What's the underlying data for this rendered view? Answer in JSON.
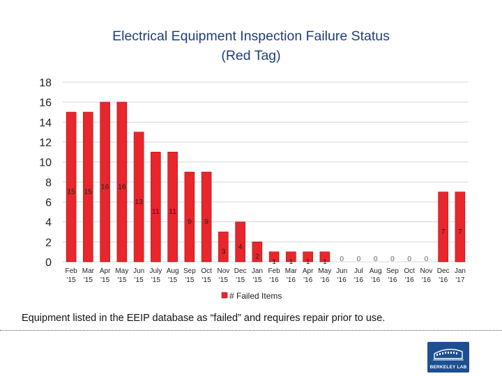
{
  "page": {
    "title_line1": "Electrical Equipment Inspection Failure Status",
    "title_line2": "(Red Tag)",
    "caption": "Equipment listed in the EEIP database as “failed” and requires repair prior to use.",
    "logo_text": "BERKELEY LAB"
  },
  "colors": {
    "bar": "#e8262b",
    "bar_stroke": "#9e1418",
    "grid": "#d4d4d4",
    "title": "#1f3d7a",
    "logo": "#1d4f91"
  },
  "chart_data": {
    "type": "bar",
    "title": "Electrical Equipment Inspection Failure Status (Red Tag)",
    "xlabel": "",
    "ylabel": "",
    "ylim": [
      0,
      18
    ],
    "yticks": [
      0,
      2,
      4,
      6,
      8,
      10,
      12,
      14,
      16,
      18
    ],
    "grid": true,
    "legend_position": "bottom-center",
    "categories": [
      [
        "Feb",
        "'15"
      ],
      [
        "Mar",
        "'15"
      ],
      [
        "Apr",
        "'15"
      ],
      [
        "May",
        "'15"
      ],
      [
        "Jun",
        "'15"
      ],
      [
        "July",
        "'15"
      ],
      [
        "Aug",
        "'15"
      ],
      [
        "Sep",
        "'15"
      ],
      [
        "Oct",
        "'15"
      ],
      [
        "Nov",
        "'15"
      ],
      [
        "Dec",
        "'15"
      ],
      [
        "Jan",
        "'15"
      ],
      [
        "Feb",
        "'16"
      ],
      [
        "Mar",
        "'16"
      ],
      [
        "Apr",
        "'16"
      ],
      [
        "May",
        "'16"
      ],
      [
        "Jun",
        "'16"
      ],
      [
        "Jul",
        "'16"
      ],
      [
        "Aug",
        "'16"
      ],
      [
        "Sep",
        "'16"
      ],
      [
        "Oct",
        "'16"
      ],
      [
        "Nov",
        "'16"
      ],
      [
        "Dec",
        "'16"
      ],
      [
        "Jan",
        "'17"
      ]
    ],
    "series": [
      {
        "name": "# Failed Items",
        "values": [
          15,
          15,
          16,
          16,
          13,
          11,
          11,
          9,
          9,
          3,
          4,
          2,
          1,
          1,
          1,
          1,
          0,
          0,
          0,
          0,
          0,
          0,
          7,
          7
        ]
      }
    ]
  }
}
